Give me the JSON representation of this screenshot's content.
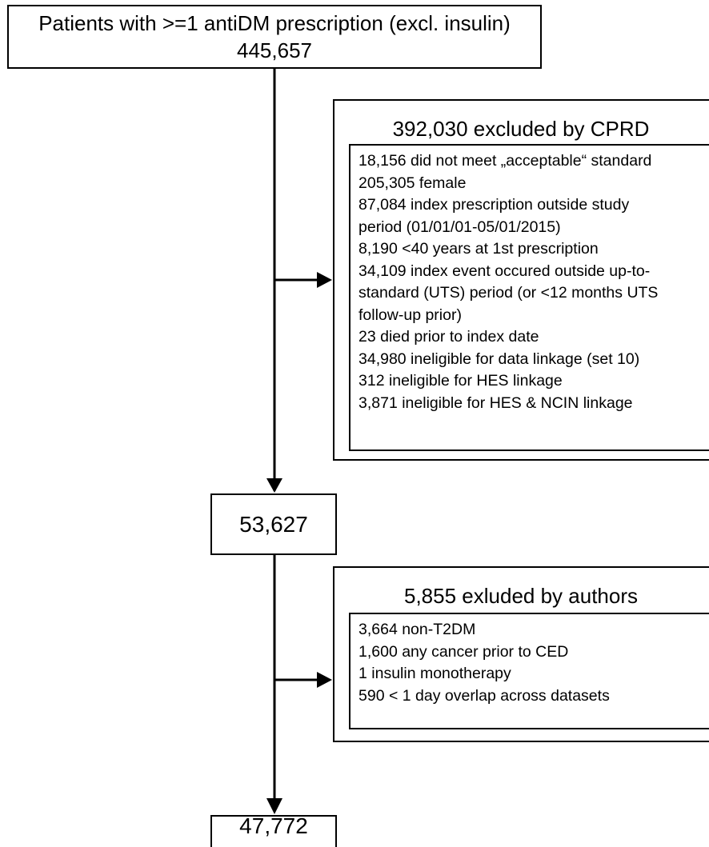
{
  "start": {
    "label": "Patients with >=1 antiDM prescription (excl. insulin)",
    "count": "445,657"
  },
  "exclusion_cprd": {
    "title": "392,030 excluded by CPRD",
    "items": [
      "18,156 did not meet „acceptable“ standard",
      "205,305 female",
      "87,084 index prescription outside study",
      "period (01/01/01-05/01/2015)",
      "8,190 <40 years at 1st prescription",
      "34,109 index event occured outside up-to-",
      "standard (UTS) period (or <12 months UTS",
      "follow-up prior)",
      "23 died prior to index date",
      "34,980 ineligible for data linkage (set 10)",
      "312 ineligible for HES linkage",
      "3,871 ineligible for HES & NCIN linkage"
    ]
  },
  "after_cprd": {
    "count": "53,627"
  },
  "exclusion_authors": {
    "title": "5,855 exluded by authors",
    "items": [
      "3,664 non-T2DM",
      "1,600 any cancer prior to CED",
      "1 insulin monotherapy",
      "590 < 1 day overlap across datasets"
    ]
  },
  "final": {
    "count": "47,772"
  }
}
